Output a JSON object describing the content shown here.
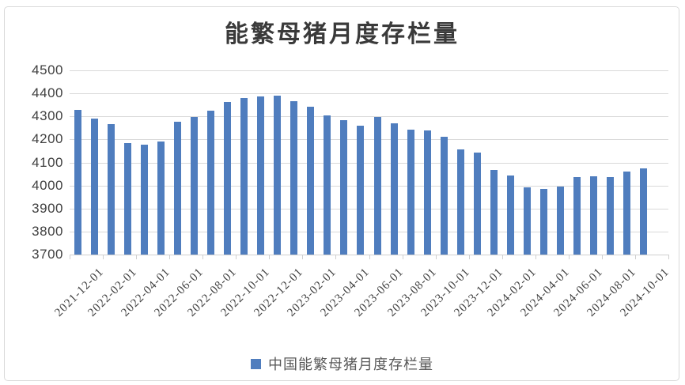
{
  "chart": {
    "colors": {
      "bar": "#4F7DBE",
      "gridline": "#D9D9D9",
      "axis_line": "#CFCFCF",
      "axis_text": "#404040",
      "legend_text": "#595959",
      "title_text": "#3A3A3A",
      "frame_border": "#D9D9D9"
    }
  },
  "chart_data": {
    "type": "bar",
    "title": "能繁母猪月度存栏量",
    "xlabel": "",
    "ylabel": "",
    "ylim": [
      3700,
      4500
    ],
    "y_ticks": [
      4500,
      4400,
      4300,
      4200,
      4100,
      4000,
      3900,
      3800,
      3700
    ],
    "grid": true,
    "legend_position": "bottom",
    "categories": [
      "2021-12-01",
      "2022-01-01",
      "2022-02-01",
      "2022-03-01",
      "2022-04-01",
      "2022-05-01",
      "2022-06-01",
      "2022-07-01",
      "2022-08-01",
      "2022-09-01",
      "2022-10-01",
      "2022-11-01",
      "2022-12-01",
      "2023-01-01",
      "2023-02-01",
      "2023-03-01",
      "2023-04-01",
      "2023-05-01",
      "2023-06-01",
      "2023-07-01",
      "2023-08-01",
      "2023-09-01",
      "2023-10-01",
      "2023-11-01",
      "2023-12-01",
      "2024-01-01",
      "2024-02-01",
      "2024-03-01",
      "2024-04-01",
      "2024-05-01",
      "2024-06-01",
      "2024-07-01",
      "2024-08-01",
      "2024-09-01",
      "2024-10-01"
    ],
    "x_tick_labels": [
      "2021-12-01",
      "2022-02-01",
      "2022-04-01",
      "2022-06-01",
      "2022-08-01",
      "2022-10-01",
      "2022-12-01",
      "2023-02-01",
      "2023-04-01",
      "2023-06-01",
      "2023-08-01",
      "2023-10-01",
      "2023-12-01",
      "2024-02-01",
      "2024-04-01",
      "2024-06-01",
      "2024-08-01",
      "2024-10-01"
    ],
    "x_label_interval": 2,
    "series": [
      {
        "name": "中国能繁母猪月度存栏量",
        "values": [
          4329,
          4290,
          4268,
          4185,
          4177,
          4192,
          4277,
          4298,
          4324,
          4362,
          4379,
          4388,
          4390,
          4367,
          4343,
          4305,
          4284,
          4258,
          4296,
          4271,
          4241,
          4240,
          4210,
          4158,
          4142,
          4067,
          4042,
          3992,
          3986,
          3996,
          4038,
          4041,
          4036,
          4062,
          4073
        ]
      }
    ]
  }
}
